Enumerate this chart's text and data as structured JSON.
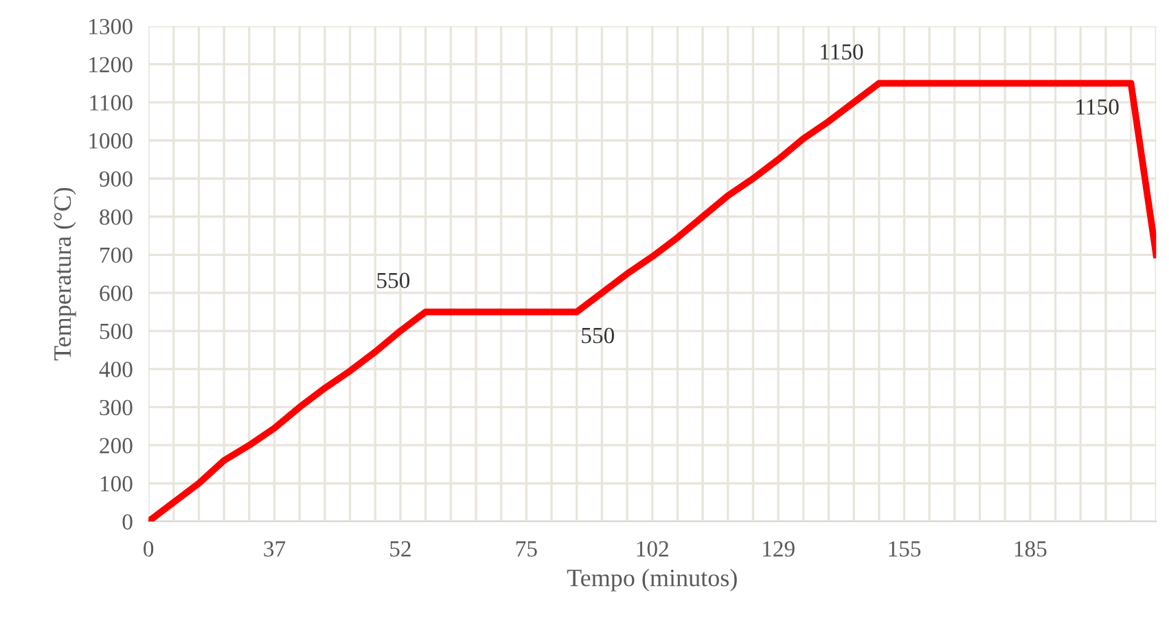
{
  "chart_data": {
    "type": "line",
    "xlabel": "Tempo (minutos)",
    "ylabel": "Temperatura (°C)",
    "categories": [
      "0",
      null,
      null,
      null,
      null,
      "37",
      null,
      null,
      null,
      null,
      "52",
      null,
      null,
      null,
      null,
      "75",
      null,
      null,
      null,
      null,
      "102",
      null,
      null,
      null,
      null,
      "129",
      null,
      null,
      null,
      null,
      "155",
      null,
      null,
      null,
      null,
      "185",
      null,
      null,
      null,
      null,
      null
    ],
    "series": [
      {
        "color": "#ff0000",
        "values": [
          0,
          50,
          100,
          160,
          200,
          245,
          300,
          350,
          395,
          445,
          500,
          550,
          550,
          550,
          550,
          550,
          550,
          550,
          600,
          650,
          695,
          745,
          800,
          855,
          900,
          950,
          1005,
          1050,
          1100,
          1150,
          1150,
          1150,
          1150,
          1150,
          1150,
          1150,
          1150,
          1150,
          1150,
          1150,
          700
        ],
        "value_labels": [
          null,
          null,
          null,
          null,
          null,
          null,
          null,
          null,
          null,
          null,
          null,
          "550",
          null,
          null,
          null,
          null,
          null,
          "550",
          null,
          null,
          null,
          null,
          null,
          null,
          null,
          null,
          null,
          null,
          null,
          "1150",
          null,
          null,
          null,
          null,
          null,
          null,
          null,
          null,
          null,
          "1150",
          null
        ]
      }
    ],
    "ylim": [
      0,
      1300
    ],
    "yticks": [
      0,
      100,
      200,
      300,
      400,
      500,
      600,
      700,
      800,
      900,
      1000,
      1100,
      1200,
      1300
    ],
    "grid": true,
    "marker": "none",
    "line_style": "solid",
    "legend": false
  }
}
